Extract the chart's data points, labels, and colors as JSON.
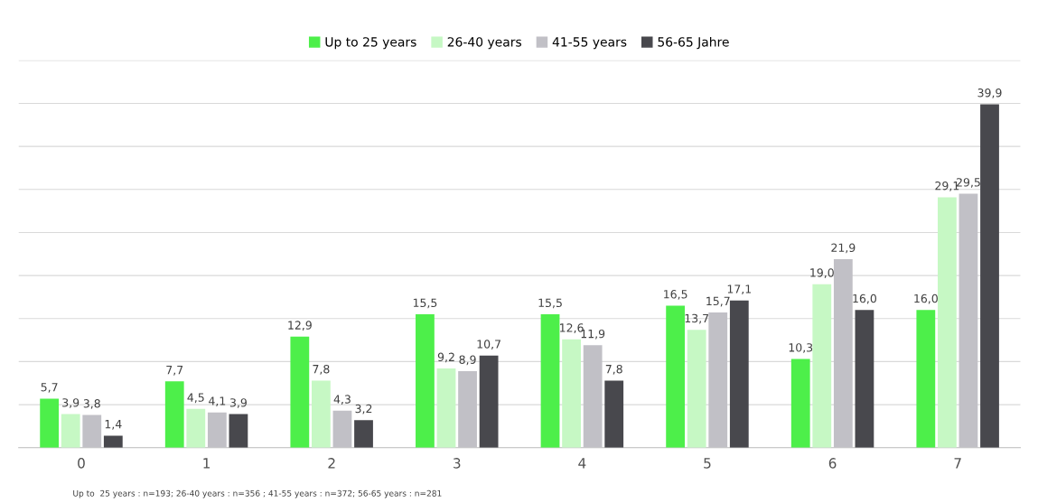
{
  "chart_data": {
    "type": "bar",
    "categories": [
      "0",
      "1",
      "2",
      "3",
      "4",
      "5",
      "6",
      "7"
    ],
    "series": [
      {
        "name": "Up to 25 years",
        "color": "#4def4a",
        "values": [
          5.7,
          7.7,
          12.9,
          15.5,
          15.5,
          16.5,
          10.3,
          16.0
        ],
        "value_labels": [
          "5,7",
          "7,7",
          "12,9",
          "15,5",
          "15,5",
          "16,5",
          "10,3",
          "16,0"
        ]
      },
      {
        "name": "26-40 years",
        "color": "#c6f8c4",
        "values": [
          3.9,
          4.5,
          7.8,
          9.2,
          12.6,
          13.7,
          19.0,
          29.1
        ],
        "value_labels": [
          "3,9",
          "4,5",
          "7,8",
          "9,2",
          "12,6",
          "13,7",
          "19,0",
          "29,1"
        ]
      },
      {
        "name": "41-55 years",
        "color": "#c1c0c6",
        "values": [
          3.8,
          4.1,
          4.3,
          8.9,
          11.9,
          15.7,
          21.9,
          29.5
        ],
        "value_labels": [
          "3,8",
          "4,1",
          "4,3",
          "8,9",
          "11,9",
          "15,7",
          "21,9",
          "29,5"
        ]
      },
      {
        "name": "56-65 Jahre",
        "color": "#48484d",
        "values": [
          1.4,
          3.9,
          3.2,
          10.7,
          7.8,
          17.1,
          16.0,
          39.9
        ],
        "value_labels": [
          "1,4",
          "3,9",
          "3,2",
          "10,7",
          "7,8",
          "17,1",
          "16,0",
          "39,9"
        ]
      }
    ],
    "ylim": [
      0,
      45
    ],
    "yticks": [
      {
        "value": 0,
        "label": null
      },
      {
        "value": 5,
        "label": null
      },
      {
        "value": 10,
        "label": null
      },
      {
        "value": 15,
        "label": null
      },
      {
        "value": 20,
        "label": null
      },
      {
        "value": 25,
        "label": null
      },
      {
        "value": 30,
        "label": null
      },
      {
        "value": 35,
        "label": null
      },
      {
        "value": 40,
        "label": null
      },
      {
        "value": 45,
        "label": null
      }
    ],
    "tick_labels": "x",
    "grid": "y",
    "legend": "top",
    "annotations": [
      "Up to  25 years : n=193; 26-40 years : n=356 ; 41-55 years : n=372; 56-65 years : n=281"
    ]
  }
}
